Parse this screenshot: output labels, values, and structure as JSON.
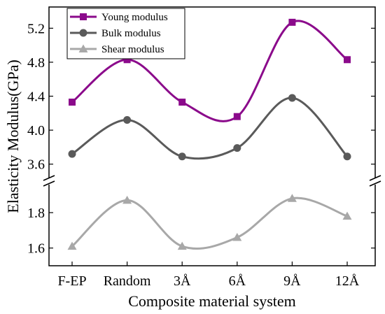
{
  "chart_data": {
    "type": "line",
    "title": "",
    "xlabel": "Composite material system",
    "ylabel": "Elasticity Modulus(GPa)",
    "categories": [
      "F-EP",
      "Random",
      "3Å",
      "6Å",
      "9Å",
      "12Å"
    ],
    "y_axis_break": true,
    "y_segments": [
      {
        "range": [
          1.5,
          1.97
        ],
        "ticks": [
          "1.6",
          "1.8"
        ]
      },
      {
        "range": [
          3.4,
          5.45
        ],
        "ticks": [
          "3.6",
          "4.0",
          "4.4",
          "4.8",
          "5.2"
        ]
      }
    ],
    "series": [
      {
        "name": "Young modulus",
        "marker": "square",
        "color": "#8b0a8b",
        "values": [
          4.33,
          4.83,
          4.33,
          4.16,
          5.27,
          4.83
        ]
      },
      {
        "name": "Bulk modulus",
        "marker": "circle",
        "color": "#5a5a5a",
        "values": [
          3.72,
          4.12,
          3.69,
          3.79,
          4.38,
          3.69
        ]
      },
      {
        "name": "Shear modulus",
        "marker": "triangle",
        "color": "#a8a8a8",
        "values": [
          1.61,
          1.87,
          1.61,
          1.66,
          1.88,
          1.78
        ]
      }
    ],
    "legend_position": "top-left",
    "grid": false
  }
}
